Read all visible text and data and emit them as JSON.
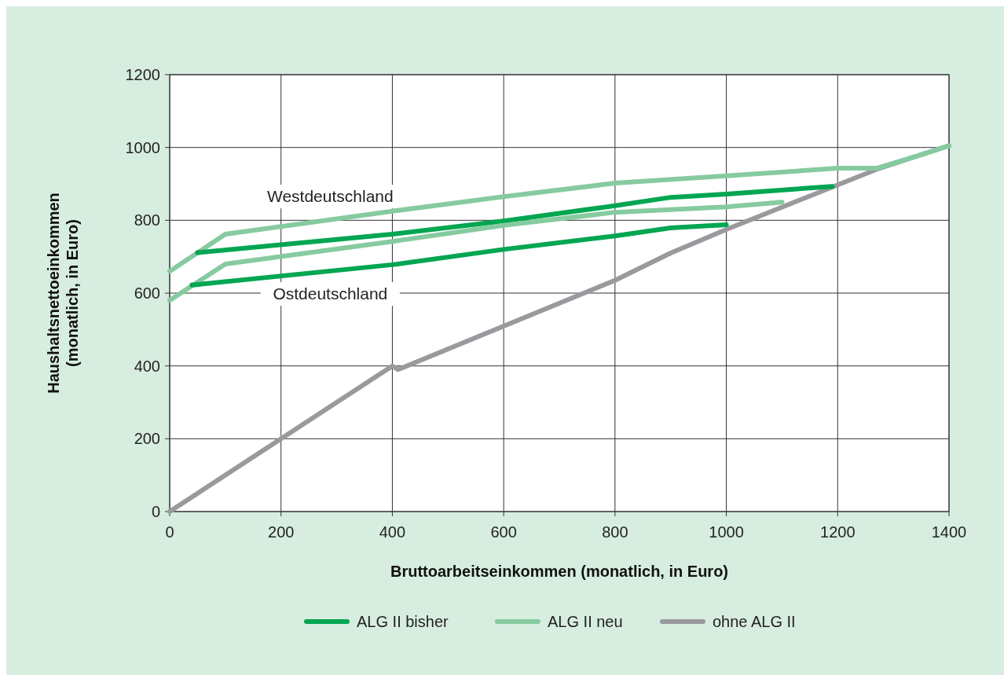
{
  "chart_data": {
    "type": "line",
    "xlabel": "Bruttoarbeitseinkommen (monatlich, in Euro)",
    "ylabel": "Haushaltsnettoeinkommen\n(monatlich, in Euro)",
    "xlim": [
      0,
      1400
    ],
    "xticks": [
      0,
      200,
      400,
      600,
      800,
      1000,
      1200,
      1400
    ],
    "ylim": [
      0,
      1200
    ],
    "yticks": [
      0,
      200,
      400,
      600,
      800,
      1000,
      1200
    ],
    "grid": true,
    "legend": "bottom",
    "line_style": "solid",
    "marker": "none",
    "series": [
      {
        "name": "ohne ALG II",
        "color": "#9a9a9e",
        "x": [
          0,
          400,
          410,
          800,
          900,
          1000,
          1270,
          1350,
          1400
        ],
        "values": [
          0,
          400,
          390,
          635,
          710,
          775,
          940,
          980,
          1005
        ]
      },
      {
        "name": "ALG II neu",
        "color": "#86cba0",
        "x": [
          0,
          100,
          400,
          600,
          800,
          1000,
          1200,
          1270,
          1350,
          1400
        ],
        "values": [
          660,
          762,
          825,
          865,
          902,
          922,
          943,
          943,
          980,
          1005
        ]
      },
      {
        "name": "ALG II bisher",
        "color": "#00a651",
        "x": [
          50,
          400,
          600,
          800,
          900,
          1000,
          1190
        ],
        "values": [
          711,
          762,
          798,
          840,
          863,
          872,
          893
        ]
      },
      {
        "color": "#86cba0",
        "x": [
          0,
          100,
          400,
          600,
          800,
          1000,
          1100
        ],
        "values": [
          580,
          680,
          742,
          786,
          822,
          837,
          850
        ]
      },
      {
        "color": "#00a651",
        "x": [
          40,
          400,
          600,
          800,
          900,
          1000
        ],
        "values": [
          622,
          678,
          720,
          757,
          779,
          788
        ]
      }
    ],
    "annotations": [
      "Westdeutschland",
      "Ostdeutschland"
    ]
  }
}
